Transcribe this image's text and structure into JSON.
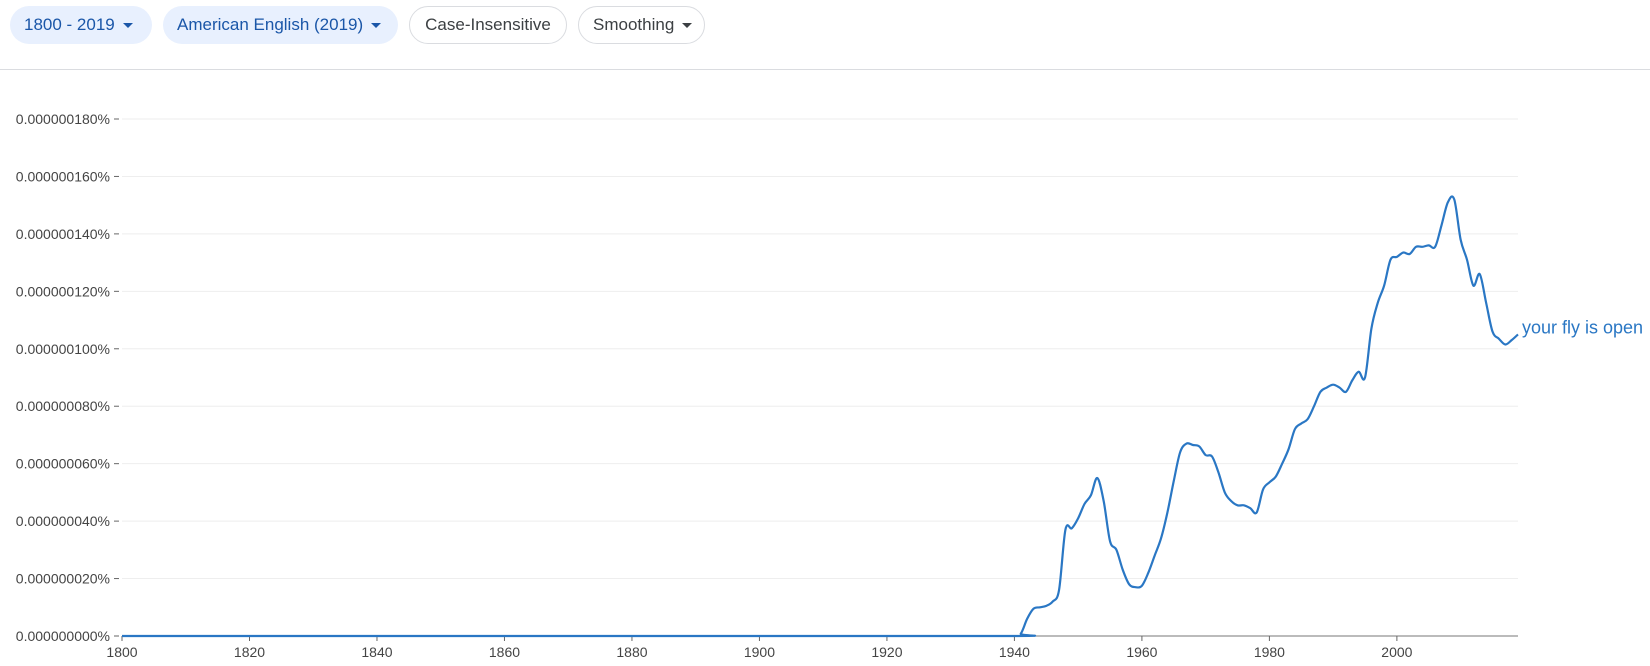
{
  "toolbar": {
    "year_range": "1800 - 2019",
    "corpus": "American English (2019)",
    "case_setting": "Case-Insensitive",
    "smoothing": "Smoothing",
    "active_color": "#1a56a8",
    "active_bg": "#e8f0fe"
  },
  "chart_data": {
    "type": "line",
    "title": "",
    "xlabel": "",
    "ylabel": "",
    "xlim": [
      1800,
      2019
    ],
    "ylim": [
      0,
      1.8e-07
    ],
    "grid": true,
    "y_ticks": [
      {
        "value": 0,
        "label": "0.000000000%"
      },
      {
        "value": 2e-08,
        "label": "0.000000020%"
      },
      {
        "value": 4e-08,
        "label": "0.000000040%"
      },
      {
        "value": 6e-08,
        "label": "0.000000060%"
      },
      {
        "value": 8e-08,
        "label": "0.000000080%"
      },
      {
        "value": 1e-07,
        "label": "0.000000100%"
      },
      {
        "value": 1.2e-07,
        "label": "0.000000120%"
      },
      {
        "value": 1.4e-07,
        "label": "0.000000140%"
      },
      {
        "value": 1.6e-07,
        "label": "0.000000160%"
      },
      {
        "value": 1.8e-07,
        "label": "0.000000180%"
      }
    ],
    "x_ticks": [
      "1800",
      "1820",
      "1840",
      "1860",
      "1880",
      "1900",
      "1920",
      "1940",
      "1960",
      "1980",
      "2000"
    ],
    "series": [
      {
        "name": "your fly is open",
        "color": "#2a77c4",
        "x": [
          1800,
          1900,
          1940,
          1941,
          1942,
          1943,
          1944,
          1945,
          1946,
          1947,
          1948,
          1949,
          1950,
          1951,
          1952,
          1953,
          1954,
          1955,
          1956,
          1957,
          1958,
          1959,
          1960,
          1961,
          1962,
          1963,
          1964,
          1965,
          1966,
          1967,
          1968,
          1969,
          1970,
          1971,
          1972,
          1973,
          1974,
          1975,
          1976,
          1977,
          1978,
          1979,
          1980,
          1981,
          1982,
          1983,
          1984,
          1985,
          1986,
          1987,
          1988,
          1989,
          1990,
          1991,
          1992,
          1993,
          1994,
          1995,
          1996,
          1997,
          1998,
          1999,
          2000,
          2001,
          2002,
          2003,
          2004,
          2005,
          2006,
          2007,
          2008,
          2009,
          2010,
          2011,
          2012,
          2013,
          2014,
          2015,
          2016,
          2017,
          2018,
          2019
        ],
        "y": [
          0,
          0,
          0,
          8e-10,
          6e-09,
          9.5e-09,
          1e-08,
          1.05e-08,
          1.2e-08,
          1.6e-08,
          3.7e-08,
          3.75e-08,
          4.1e-08,
          4.6e-08,
          4.9e-08,
          5.5e-08,
          4.7e-08,
          3.3e-08,
          3e-08,
          2.3e-08,
          1.8e-08,
          1.7e-08,
          1.75e-08,
          2.2e-08,
          2.8e-08,
          3.4e-08,
          4.3e-08,
          5.4e-08,
          6.4e-08,
          6.7e-08,
          6.65e-08,
          6.6e-08,
          6.3e-08,
          6.25e-08,
          5.7e-08,
          5e-08,
          4.7e-08,
          4.55e-08,
          4.55e-08,
          4.45e-08,
          4.3e-08,
          5.1e-08,
          5.35e-08,
          5.55e-08,
          6e-08,
          6.5e-08,
          7.2e-08,
          7.4e-08,
          7.55e-08,
          8e-08,
          8.5e-08,
          8.65e-08,
          8.75e-08,
          8.65e-08,
          8.5e-08,
          8.9e-08,
          9.2e-08,
          9e-08,
          1.07e-07,
          1.16e-07,
          1.22e-07,
          1.31e-07,
          1.32e-07,
          1.335e-07,
          1.33e-07,
          1.355e-07,
          1.355e-07,
          1.36e-07,
          1.355e-07,
          1.43e-07,
          1.51e-07,
          1.52e-07,
          1.38e-07,
          1.31e-07,
          1.22e-07,
          1.26e-07,
          1.16e-07,
          1.06e-07,
          1.035e-07,
          1.015e-07,
          1.03e-07,
          1.05e-07
        ]
      }
    ]
  }
}
